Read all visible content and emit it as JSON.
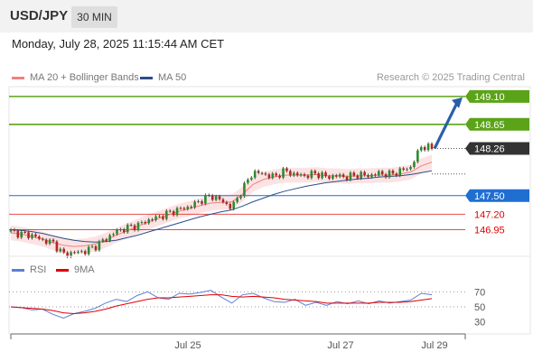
{
  "header": {
    "symbol": "USD/JPY",
    "timeframe": "30 MIN"
  },
  "datetime": "Monday, July 28, 2025 11:15:44 AM CET",
  "legend": {
    "ma_bb_label": "MA 20 + Bollinger Bands",
    "ma_bb_color": "#f08080",
    "ma50_label": "MA 50",
    "ma50_color": "#2a4e8a",
    "credit": "Research © 2025 Trading Central"
  },
  "rsi_legend": {
    "rsi_label": "RSI",
    "rsi_color": "#5b7fd6",
    "ma_label": "9MA",
    "ma_color": "#e00000"
  },
  "chart_data": [
    {
      "type": "candlestick",
      "y_range": [
        146.55,
        149.2
      ],
      "levels": [
        {
          "label": "149.10",
          "value": 149.1,
          "color": "#5ba318",
          "kind": "target"
        },
        {
          "label": "148.65",
          "value": 148.65,
          "color": "#5ba318",
          "kind": "target"
        },
        {
          "label": "148.26",
          "value": 148.26,
          "color": "#333333",
          "kind": "current"
        },
        {
          "label": "147.50",
          "value": 147.5,
          "color": "#1f6fd1",
          "kind": "pivot"
        },
        {
          "label": "147.20",
          "value": 147.2,
          "color": "#e00000",
          "kind": "support"
        },
        {
          "label": "146.95",
          "value": 146.95,
          "color": "#e00000",
          "kind": "support"
        }
      ],
      "x_tick_labels": [
        "Jul 25",
        "Jul 27",
        "Jul 29"
      ],
      "close_path": [
        146.92,
        146.88,
        146.86,
        146.78,
        146.74,
        146.55,
        146.58,
        146.6,
        146.68,
        146.8,
        146.92,
        146.98,
        147.02,
        147.1,
        147.15,
        147.22,
        147.28,
        147.32,
        147.42,
        147.5,
        147.42,
        147.3,
        147.6,
        147.88,
        147.85,
        147.8,
        147.9,
        147.84,
        147.82,
        147.86,
        147.8,
        147.82,
        147.8,
        147.84,
        147.82,
        147.86,
        147.84,
        147.9,
        147.96,
        148.3,
        148.26
      ],
      "ma20": [
        146.9,
        146.88,
        146.84,
        146.8,
        146.74,
        146.7,
        146.68,
        146.69,
        146.72,
        146.78,
        146.86,
        146.93,
        147.0,
        147.07,
        147.13,
        147.19,
        147.25,
        147.29,
        147.34,
        147.38,
        147.39,
        147.4,
        147.52,
        147.68,
        147.76,
        147.8,
        147.83,
        147.83,
        147.83,
        147.84,
        147.82,
        147.82,
        147.81,
        147.82,
        147.82,
        147.83,
        147.83,
        147.85,
        147.88,
        147.98,
        148.04
      ],
      "ma50": [
        146.95,
        146.94,
        146.92,
        146.89,
        146.85,
        146.81,
        146.78,
        146.76,
        146.75,
        146.76,
        146.78,
        146.82,
        146.86,
        146.91,
        146.96,
        147.01,
        147.06,
        147.11,
        147.16,
        147.2,
        147.24,
        147.27,
        147.33,
        147.4,
        147.46,
        147.52,
        147.57,
        147.61,
        147.65,
        147.68,
        147.71,
        147.73,
        147.75,
        147.77,
        147.78,
        147.8,
        147.81,
        147.82,
        147.84,
        147.87,
        147.9
      ],
      "bb_width": 0.12,
      "forecast_arrow": {
        "from": 148.26,
        "to": 149.1
      }
    },
    {
      "type": "line",
      "title": "RSI",
      "y_range": [
        20,
        80
      ],
      "y_ticks": [
        70,
        50,
        30
      ],
      "series": [
        {
          "name": "RSI",
          "color": "#5b7fd6",
          "values": [
            50,
            49,
            46,
            47,
            40,
            35,
            41,
            44,
            48,
            55,
            60,
            57,
            65,
            70,
            62,
            60,
            68,
            67,
            69,
            72,
            63,
            55,
            66,
            68,
            62,
            57,
            56,
            60,
            52,
            56,
            52,
            57,
            54,
            58,
            54,
            58,
            55,
            57,
            59,
            68,
            66
          ]
        },
        {
          "name": "9MA",
          "color": "#e00000",
          "values": [
            50,
            49,
            48,
            47,
            45,
            42,
            41,
            42,
            44,
            47,
            51,
            54,
            57,
            60,
            62,
            62,
            63,
            64,
            65,
            66,
            66,
            64,
            63,
            64,
            63,
            62,
            60,
            59,
            58,
            57,
            55,
            55,
            55,
            55,
            55,
            56,
            56,
            56,
            57,
            59,
            61
          ]
        }
      ]
    }
  ]
}
